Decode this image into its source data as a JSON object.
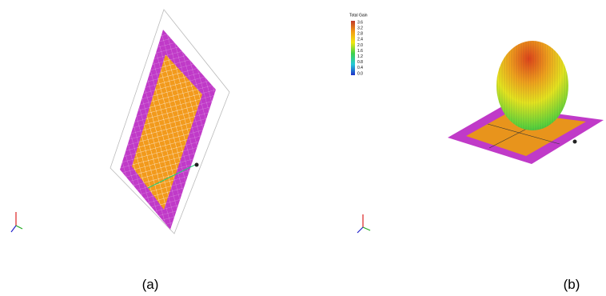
{
  "panels": [
    {
      "caption": "(a)"
    },
    {
      "caption": "(b)",
      "legend": {
        "title": "Total Gain",
        "ticks": [
          3.6,
          3.2,
          2.8,
          2.4,
          {
            "value": 2,
            "label": "2.0"
          },
          1.6,
          1.2,
          0.8,
          0.4,
          {
            "value": 0,
            "label": "0.0"
          }
        ]
      }
    }
  ]
}
